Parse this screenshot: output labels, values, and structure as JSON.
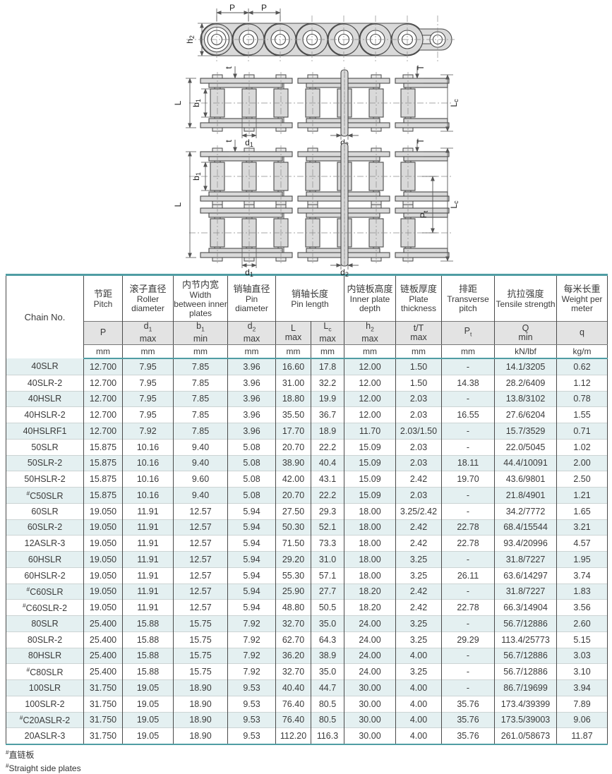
{
  "colors": {
    "accent_teal": "#4f9da3",
    "row_alt_bg": "#e4f0f1",
    "symbol_row_bg": "#e3e3e3"
  },
  "diagram": {
    "labels": {
      "P": {
        "main": "P",
        "sub": ""
      },
      "h2": {
        "main": "h",
        "sub": "2"
      },
      "t": {
        "main": "t",
        "sub": ""
      },
      "T": {
        "main": "T",
        "sub": ""
      },
      "L": {
        "main": "L",
        "sub": ""
      },
      "b1": {
        "main": "b",
        "sub": "1"
      },
      "Lc": {
        "main": "L",
        "sub": "c"
      },
      "Pt": {
        "main": "P",
        "sub": "t"
      },
      "d1": {
        "main": "d",
        "sub": "1"
      },
      "d2": {
        "main": "d",
        "sub": "2"
      }
    }
  },
  "table": {
    "chain_no_header": "Chain No.",
    "groups": [
      {
        "zh": "节距",
        "en": "Pitch",
        "cols": [
          {
            "sym": "P",
            "sym_sub": "",
            "sym_line2": "",
            "unit": "mm"
          }
        ]
      },
      {
        "zh": "滚子直径",
        "en": "Roller diameter",
        "cols": [
          {
            "sym": "d",
            "sym_sub": "1",
            "sym_line2": "max",
            "unit": "mm"
          }
        ]
      },
      {
        "zh": "内节内宽",
        "en": "Width between inner plates",
        "cols": [
          {
            "sym": "b",
            "sym_sub": "1",
            "sym_line2": "min",
            "unit": "mm"
          }
        ]
      },
      {
        "zh": "销轴直径",
        "en": "Pin diameter",
        "cols": [
          {
            "sym": "d",
            "sym_sub": "2",
            "sym_line2": "max",
            "unit": "mm"
          }
        ]
      },
      {
        "zh": "销轴长度",
        "en": "Pin length",
        "cols": [
          {
            "sym": "L",
            "sym_sub": "",
            "sym_line2": "max",
            "unit": "mm"
          },
          {
            "sym": "L",
            "sym_sub": "c",
            "sym_line2": "max",
            "unit": "mm"
          }
        ]
      },
      {
        "zh": "内链板高度",
        "en": "Inner plate depth",
        "cols": [
          {
            "sym": "h",
            "sym_sub": "2",
            "sym_line2": "max",
            "unit": "mm"
          }
        ]
      },
      {
        "zh": "链板厚度",
        "en": "Plate thickness",
        "cols": [
          {
            "sym": "t/T",
            "sym_sub": "",
            "sym_line2": "max",
            "unit": "mm"
          }
        ]
      },
      {
        "zh": "排距",
        "en": "Transverse pitch",
        "cols": [
          {
            "sym": "P",
            "sym_sub": "t",
            "sym_line2": "",
            "unit": "mm"
          }
        ]
      },
      {
        "zh": "抗拉强度",
        "en": "Tensile strength",
        "cols": [
          {
            "sym": "Q",
            "sym_sub": "",
            "sym_line2": "min",
            "unit": "kN/lbf"
          }
        ]
      },
      {
        "zh": "每米长重",
        "en": "Weight per meter",
        "cols": [
          {
            "sym": "q",
            "sym_sub": "",
            "sym_line2": "",
            "unit": "kg/m"
          }
        ]
      }
    ],
    "rows": [
      [
        "40SLR",
        "12.700",
        "7.95",
        "7.85",
        "3.96",
        "16.60",
        "17.8",
        "12.00",
        "1.50",
        "-",
        "14.1/3205",
        "0.62"
      ],
      [
        "40SLR-2",
        "12.700",
        "7.95",
        "7.85",
        "3.96",
        "31.00",
        "32.2",
        "12.00",
        "1.50",
        "14.38",
        "28.2/6409",
        "1.12"
      ],
      [
        "40HSLR",
        "12.700",
        "7.95",
        "7.85",
        "3.96",
        "18.80",
        "19.9",
        "12.00",
        "2.03",
        "-",
        "13.8/3102",
        "0.78"
      ],
      [
        "40HSLR-2",
        "12.700",
        "7.95",
        "7.85",
        "3.96",
        "35.50",
        "36.7",
        "12.00",
        "2.03",
        "16.55",
        "27.6/6204",
        "1.55"
      ],
      [
        "40HSLRF1",
        "12.700",
        "7.92",
        "7.85",
        "3.96",
        "17.70",
        "18.9",
        "11.70",
        "2.03/1.50",
        "-",
        "15.7/3529",
        "0.71"
      ],
      [
        "50SLR",
        "15.875",
        "10.16",
        "9.40",
        "5.08",
        "20.70",
        "22.2",
        "15.09",
        "2.03",
        "-",
        "22.0/5045",
        "1.02"
      ],
      [
        "50SLR-2",
        "15.875",
        "10.16",
        "9.40",
        "5.08",
        "38.90",
        "40.4",
        "15.09",
        "2.03",
        "18.11",
        "44.4/10091",
        "2.00"
      ],
      [
        "50HSLR-2",
        "15.875",
        "10.16",
        "9.60",
        "5.08",
        "42.00",
        "43.1",
        "15.09",
        "2.42",
        "19.70",
        "43.6/9801",
        "2.50"
      ],
      [
        "#C50SLR",
        "15.875",
        "10.16",
        "9.40",
        "5.08",
        "20.70",
        "22.2",
        "15.09",
        "2.03",
        "-",
        "21.8/4901",
        "1.21"
      ],
      [
        "60SLR",
        "19.050",
        "11.91",
        "12.57",
        "5.94",
        "27.50",
        "29.3",
        "18.00",
        "3.25/2.42",
        "-",
        "34.2/7772",
        "1.65"
      ],
      [
        "60SLR-2",
        "19.050",
        "11.91",
        "12.57",
        "5.94",
        "50.30",
        "52.1",
        "18.00",
        "2.42",
        "22.78",
        "68.4/15544",
        "3.21"
      ],
      [
        "12ASLR-3",
        "19.050",
        "11.91",
        "12.57",
        "5.94",
        "71.50",
        "73.3",
        "18.00",
        "2.42",
        "22.78",
        "93.4/20996",
        "4.57"
      ],
      [
        "60HSLR",
        "19.050",
        "11.91",
        "12.57",
        "5.94",
        "29.20",
        "31.0",
        "18.00",
        "3.25",
        "-",
        "31.8/7227",
        "1.95"
      ],
      [
        "60HSLR-2",
        "19.050",
        "11.91",
        "12.57",
        "5.94",
        "55.30",
        "57.1",
        "18.00",
        "3.25",
        "26.11",
        "63.6/14297",
        "3.74"
      ],
      [
        "#C60SLR",
        "19.050",
        "11.91",
        "12.57",
        "5.94",
        "25.90",
        "27.7",
        "18.20",
        "2.42",
        "-",
        "31.8/7227",
        "1.83"
      ],
      [
        "#C60SLR-2",
        "19.050",
        "11.91",
        "12.57",
        "5.94",
        "48.80",
        "50.5",
        "18.20",
        "2.42",
        "22.78",
        "66.3/14904",
        "3.56"
      ],
      [
        "80SLR",
        "25.400",
        "15.88",
        "15.75",
        "7.92",
        "32.70",
        "35.0",
        "24.00",
        "3.25",
        "-",
        "56.7/12886",
        "2.60"
      ],
      [
        "80SLR-2",
        "25.400",
        "15.88",
        "15.75",
        "7.92",
        "62.70",
        "64.3",
        "24.00",
        "3.25",
        "29.29",
        "113.4/25773",
        "5.15"
      ],
      [
        "80HSLR",
        "25.400",
        "15.88",
        "15.75",
        "7.92",
        "36.20",
        "38.9",
        "24.00",
        "4.00",
        "-",
        "56.7/12886",
        "3.03"
      ],
      [
        "#C80SLR",
        "25.400",
        "15.88",
        "15.75",
        "7.92",
        "32.70",
        "35.0",
        "24.00",
        "3.25",
        "-",
        "56.7/12886",
        "3.10"
      ],
      [
        "100SLR",
        "31.750",
        "19.05",
        "18.90",
        "9.53",
        "40.40",
        "44.7",
        "30.00",
        "4.00",
        "-",
        "86.7/19699",
        "3.94"
      ],
      [
        "100SLR-2",
        "31.750",
        "19.05",
        "18.90",
        "9.53",
        "76.40",
        "80.5",
        "30.00",
        "4.00",
        "35.76",
        "173.4/39399",
        "7.89"
      ],
      [
        "#C20ASLR-2",
        "31.750",
        "19.05",
        "18.90",
        "9.53",
        "76.40",
        "80.5",
        "30.00",
        "4.00",
        "35.76",
        "173.5/39003",
        "9.06"
      ],
      [
        "20ASLR-3",
        "31.750",
        "19.05",
        "18.90",
        "9.53",
        "112.20",
        "116.3",
        "30.00",
        "4.00",
        "35.76",
        "261.0/58673",
        "11.87"
      ]
    ]
  },
  "footnotes": {
    "marker": "#",
    "zh": "直链板",
    "en": "Straight side plates"
  }
}
